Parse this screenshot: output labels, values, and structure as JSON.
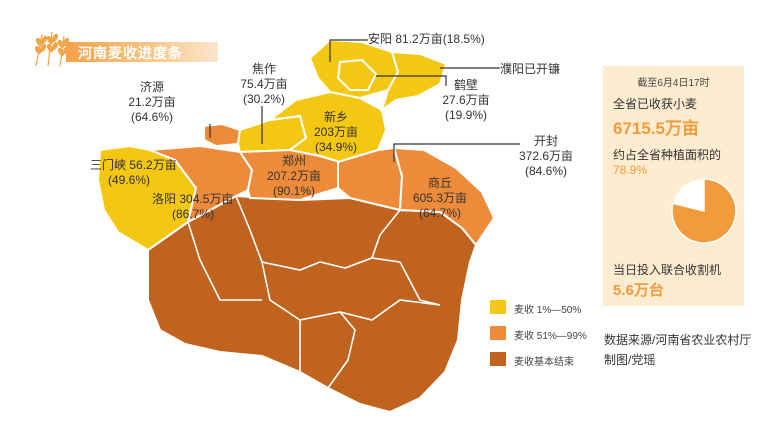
{
  "title": "河南麦收进度条",
  "colors": {
    "level1": "#f3c712",
    "level2": "#ee8b3a",
    "level3": "#c0631f",
    "border": "#ffffff",
    "accent": "#f29b3c",
    "panel_bg": "#fdeccf"
  },
  "regions": {
    "anyang": {
      "name": "安阳",
      "value": "81.2万亩",
      "pct": "(18.5%)",
      "level": "level1"
    },
    "puyang": {
      "name": "濮阳已开镰",
      "level": "level1"
    },
    "hebi": {
      "name": "鹤壁",
      "value": "27.6万亩",
      "pct": "(19.9%)",
      "level": "level1"
    },
    "jiaozuo": {
      "name": "焦作",
      "value": "75.4万亩",
      "pct": "(30.2%)",
      "level": "level1"
    },
    "jiyuan": {
      "name": "济源",
      "value": "21.2万亩",
      "pct": "(64.6%)",
      "level": "level2"
    },
    "xinxiang": {
      "name": "新乡",
      "value": "203万亩",
      "pct": "(34.9%)",
      "level": "level1"
    },
    "sanmenxia": {
      "name": "三门峡",
      "value": "56.2万亩",
      "pct": "(49.6%)",
      "level": "level1"
    },
    "zhengzhou": {
      "name": "郑州",
      "value": "207.2万亩",
      "pct": "(90.1%)",
      "level": "level2"
    },
    "kaifeng": {
      "name": "开封",
      "value": "372.6万亩",
      "pct": "(84.6%)",
      "level": "level2"
    },
    "luoyang": {
      "name": "洛阳",
      "value": "304.5万亩",
      "pct": "(86.7%)",
      "level": "level2"
    },
    "shangqiu": {
      "name": "商丘",
      "value": "605.3万亩",
      "pct": "(64.7%)",
      "level": "level2"
    },
    "southern": {
      "level": "level3"
    }
  },
  "legend": [
    {
      "label": "麦收 1%—50%",
      "color_key": "level1"
    },
    {
      "label": "麦收 51%—99%",
      "color_key": "level2"
    },
    {
      "label": "麦收基本结束",
      "color_key": "level3"
    }
  ],
  "panel": {
    "date": "截至6月4日17时",
    "harvest_label": "全省已收获小麦",
    "harvest_value": "6715.5万亩",
    "share_label": "约占全省种植面积的",
    "share_value": "78.9%",
    "share_fraction": 0.789,
    "machines_label": "当日投入联合收割机",
    "machines_value": "5.6万台"
  },
  "source": {
    "line1": "数据来源/河南省农业农村厅",
    "line2": "制图/党瑶"
  }
}
